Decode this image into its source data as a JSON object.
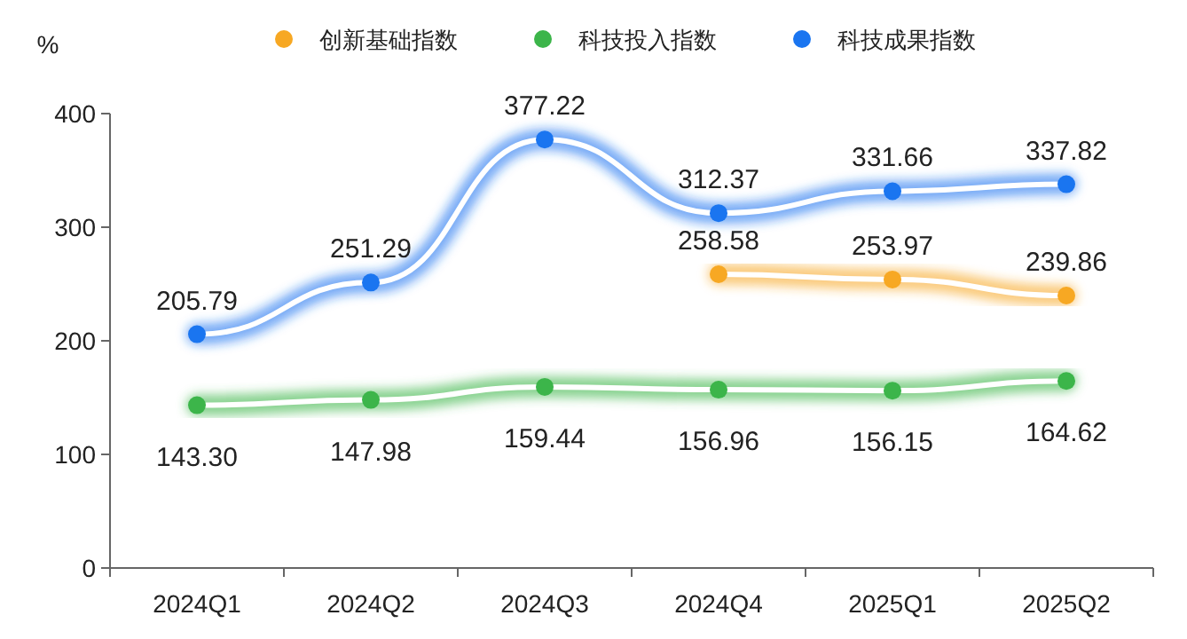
{
  "chart_data": {
    "type": "line",
    "ylabel": "%",
    "categories": [
      "2024Q1",
      "2024Q2",
      "2024Q3",
      "2024Q4",
      "2025Q1",
      "2025Q2"
    ],
    "series": [
      {
        "name": "创新基础指数",
        "color": "#f7a823",
        "values": [
          null,
          null,
          null,
          258.58,
          253.97,
          239.86
        ],
        "value_labels": [
          null,
          null,
          null,
          "258.58",
          "253.97",
          "239.86"
        ]
      },
      {
        "name": "科技投入指数",
        "color": "#3cb54a",
        "values": [
          143.3,
          147.98,
          159.44,
          156.96,
          156.15,
          164.62
        ],
        "value_labels": [
          "143.30",
          "147.98",
          "159.44",
          "156.96",
          "156.15",
          "164.62"
        ]
      },
      {
        "name": "科技成果指数",
        "color": "#1a75f0",
        "values": [
          205.79,
          251.29,
          377.22,
          312.37,
          331.66,
          337.82
        ],
        "value_labels": [
          "205.79",
          "251.29",
          "377.22",
          "312.37",
          "331.66",
          "337.82"
        ]
      }
    ],
    "ylim": [
      0,
      400
    ],
    "yticks": [
      0,
      100,
      200,
      300,
      400
    ],
    "legend": "top right",
    "marker": "circle",
    "line_style": "solid",
    "grid": false
  }
}
